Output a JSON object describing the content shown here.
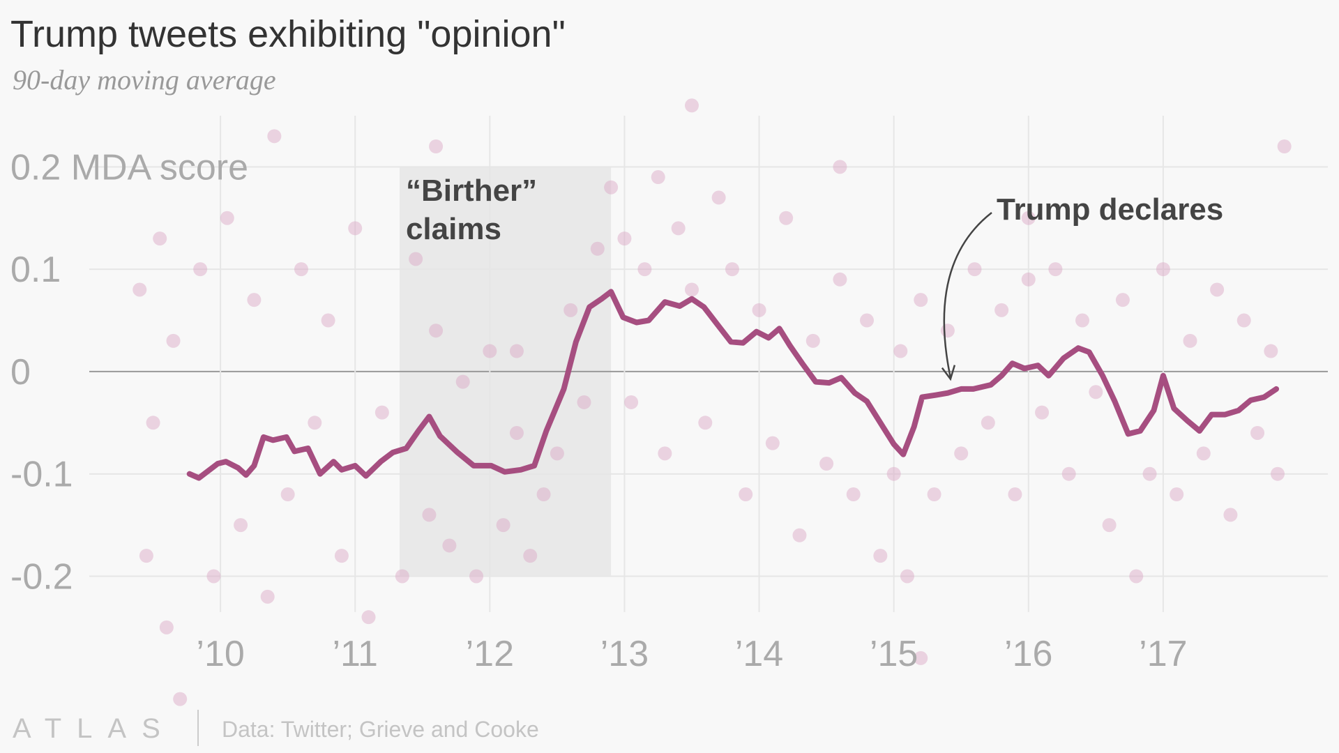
{
  "chart_data": {
    "type": "line",
    "title": "Trump tweets exhibiting \"opinion\"",
    "subtitle": "90-day moving average",
    "source": "Data: Twitter; Grieve and Cooke",
    "logo": "ATLAS",
    "xlim": [
      2009.0,
      2018.2
    ],
    "ylim": [
      -0.37,
      0.36
    ],
    "xticks": [
      {
        "value": 2010,
        "label": "’10"
      },
      {
        "value": 2011,
        "label": "’11"
      },
      {
        "value": 2012,
        "label": "’12"
      },
      {
        "value": 2013,
        "label": "’13"
      },
      {
        "value": 2014,
        "label": "’14"
      },
      {
        "value": 2015,
        "label": "’15"
      },
      {
        "value": 2016,
        "label": "’16"
      },
      {
        "value": 2017,
        "label": "’17"
      }
    ],
    "yticks": [
      -0.2,
      -0.1,
      0,
      0.1,
      {
        "value": 0.2,
        "label": "0.2 MDA score"
      }
    ],
    "grid": true,
    "shaded_region": {
      "x": [
        2011.33,
        2012.9
      ],
      "y": [
        -0.2,
        0.2
      ],
      "label": [
        "“Birther”",
        "claims"
      ]
    },
    "annotation": {
      "text": "Trump declares",
      "x": 2015.4,
      "y": -0.01
    },
    "line": {
      "color": "#a64e80",
      "x": [
        2009.77,
        2009.84,
        2009.98,
        2010.04,
        2010.13,
        2010.19,
        2010.25,
        2010.32,
        2010.39,
        2010.49,
        2010.55,
        2010.65,
        2010.74,
        2010.84,
        2010.9,
        2011.0,
        2011.08,
        2011.19,
        2011.28,
        2011.38,
        2011.47,
        2011.55,
        2011.63,
        2011.76,
        2011.88,
        2012.01,
        2012.11,
        2012.23,
        2012.33,
        2012.42,
        2012.55,
        2012.64,
        2012.74,
        2012.83,
        2012.9,
        2012.99,
        2013.09,
        2013.18,
        2013.3,
        2013.41,
        2013.5,
        2013.59,
        2013.69,
        2013.79,
        2013.88,
        2013.98,
        2014.07,
        2014.15,
        2014.23,
        2014.32,
        2014.42,
        2014.52,
        2014.61,
        2014.71,
        2014.8,
        2014.9,
        2015.0,
        2015.07,
        2015.15,
        2015.21,
        2015.31,
        2015.4,
        2015.5,
        2015.59,
        2015.72,
        2015.8,
        2015.88,
        2015.97,
        2016.07,
        2016.15,
        2016.26,
        2016.37,
        2016.45,
        2016.55,
        2016.64,
        2016.74,
        2016.83,
        2016.93,
        2017.0,
        2017.08,
        2017.18,
        2017.27,
        2017.36,
        2017.46,
        2017.56,
        2017.65,
        2017.75,
        2017.84
      ],
      "values": [
        -0.1,
        -0.104,
        -0.09,
        -0.088,
        -0.094,
        -0.101,
        -0.092,
        -0.064,
        -0.067,
        -0.064,
        -0.078,
        -0.075,
        -0.1,
        -0.088,
        -0.096,
        -0.092,
        -0.102,
        -0.088,
        -0.079,
        -0.075,
        -0.058,
        -0.044,
        -0.063,
        -0.079,
        -0.092,
        -0.092,
        -0.098,
        -0.096,
        -0.092,
        -0.058,
        -0.017,
        0.029,
        0.063,
        0.071,
        0.078,
        0.053,
        0.048,
        0.05,
        0.068,
        0.064,
        0.071,
        0.063,
        0.046,
        0.029,
        0.028,
        0.039,
        0.033,
        0.042,
        0.025,
        0.008,
        -0.01,
        -0.011,
        -0.006,
        -0.021,
        -0.029,
        -0.05,
        -0.071,
        -0.081,
        -0.054,
        -0.025,
        -0.023,
        -0.021,
        -0.017,
        -0.017,
        -0.013,
        -0.004,
        0.008,
        0.003,
        0.006,
        -0.004,
        0.013,
        0.023,
        0.019,
        -0.004,
        -0.029,
        -0.061,
        -0.058,
        -0.038,
        -0.004,
        -0.036,
        -0.048,
        -0.058,
        -0.042,
        -0.042,
        -0.038,
        -0.028,
        -0.025,
        -0.017
      ]
    },
    "points": {
      "color": "#d9a3c4",
      "x": [
        2009.4,
        2009.45,
        2009.5,
        2009.55,
        2009.6,
        2009.65,
        2009.7,
        2009.85,
        2009.95,
        2010.05,
        2010.15,
        2010.25,
        2010.35,
        2010.4,
        2010.5,
        2010.6,
        2010.7,
        2010.8,
        2010.9,
        2011.0,
        2011.1,
        2011.2,
        2011.35,
        2011.45,
        2011.55,
        2011.6,
        2011.7,
        2011.8,
        2011.9,
        2012.0,
        2012.1,
        2012.2,
        2012.3,
        2012.4,
        2012.5,
        2012.6,
        2012.7,
        2012.8,
        2012.9,
        2013.0,
        2013.05,
        2013.15,
        2013.25,
        2013.3,
        2013.4,
        2013.5,
        2013.6,
        2013.7,
        2013.8,
        2013.9,
        2014.0,
        2014.1,
        2014.2,
        2014.3,
        2014.4,
        2014.5,
        2014.6,
        2014.7,
        2014.8,
        2014.9,
        2015.0,
        2015.05,
        2015.1,
        2015.2,
        2015.3,
        2015.4,
        2015.5,
        2015.6,
        2015.7,
        2015.8,
        2015.9,
        2016.0,
        2016.1,
        2016.2,
        2016.3,
        2016.4,
        2016.5,
        2016.6,
        2016.7,
        2016.8,
        2016.9,
        2017.0,
        2017.1,
        2017.2,
        2017.3,
        2017.4,
        2017.5,
        2017.6,
        2017.7,
        2017.8,
        2017.85,
        2017.9,
        2013.5,
        2015.2,
        2016.0,
        2012.2,
        2014.6,
        2011.6
      ],
      "y": [
        0.08,
        -0.18,
        -0.05,
        0.13,
        -0.25,
        0.03,
        -0.32,
        0.1,
        -0.2,
        0.15,
        -0.15,
        0.07,
        -0.22,
        0.23,
        -0.12,
        0.1,
        -0.05,
        0.05,
        -0.18,
        0.14,
        -0.24,
        -0.04,
        -0.2,
        0.11,
        -0.14,
        0.04,
        -0.17,
        -0.01,
        -0.2,
        0.02,
        -0.15,
        -0.06,
        -0.18,
        -0.12,
        -0.08,
        0.06,
        -0.03,
        0.12,
        0.18,
        0.13,
        -0.03,
        0.1,
        0.19,
        -0.08,
        0.14,
        0.08,
        -0.05,
        0.17,
        0.1,
        -0.12,
        0.06,
        -0.07,
        0.15,
        -0.16,
        0.03,
        -0.09,
        0.09,
        -0.12,
        0.05,
        -0.18,
        -0.1,
        0.02,
        -0.2,
        0.07,
        -0.12,
        0.04,
        -0.08,
        0.1,
        -0.05,
        0.06,
        -0.12,
        0.09,
        -0.04,
        0.1,
        -0.1,
        0.05,
        -0.02,
        -0.15,
        0.07,
        -0.2,
        -0.1,
        0.1,
        -0.12,
        0.03,
        -0.08,
        0.08,
        -0.14,
        0.05,
        -0.06,
        0.02,
        -0.1,
        0.22,
        0.26,
        -0.28,
        0.15,
        0.02,
        0.2,
        0.22
      ]
    }
  }
}
